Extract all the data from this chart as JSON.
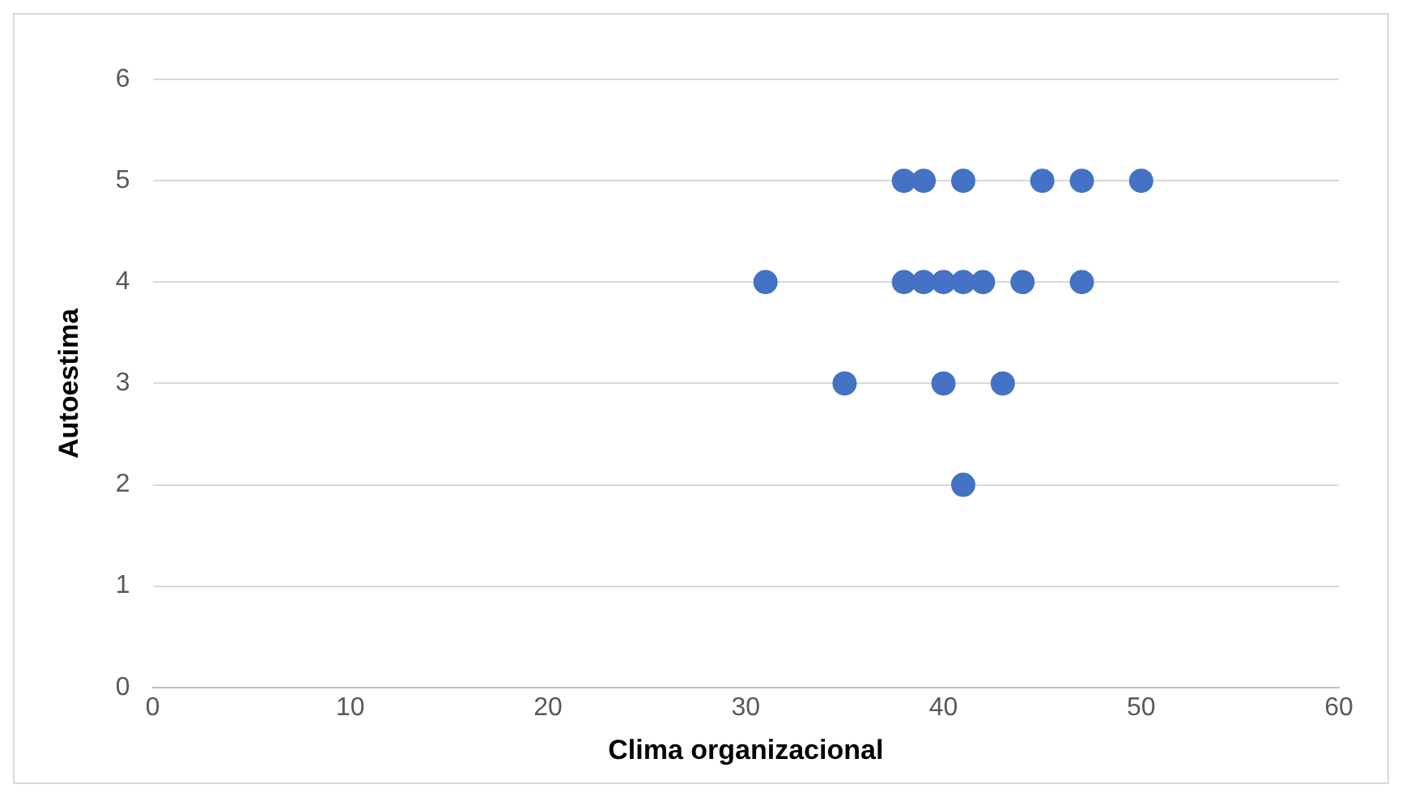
{
  "chart_data": {
    "type": "scatter",
    "xlabel": "Clima organizacional",
    "ylabel": "Autoestima",
    "x": [
      38,
      39,
      41,
      45,
      47,
      50,
      31,
      38,
      39,
      40,
      41,
      42,
      44,
      47,
      35,
      40,
      43,
      41
    ],
    "values": [
      5,
      5,
      5,
      5,
      5,
      5,
      4,
      4,
      4,
      4,
      4,
      4,
      4,
      4,
      3,
      3,
      3,
      2
    ],
    "color": "#4472c4",
    "marker": "circle",
    "xlim": [
      0,
      60
    ],
    "xticks": [
      0,
      10,
      20,
      30,
      40,
      50,
      60
    ],
    "ylim": [
      0,
      6
    ],
    "yticks": [
      0,
      1,
      2,
      3,
      4,
      5,
      6
    ],
    "grid": "y",
    "legend": false
  }
}
